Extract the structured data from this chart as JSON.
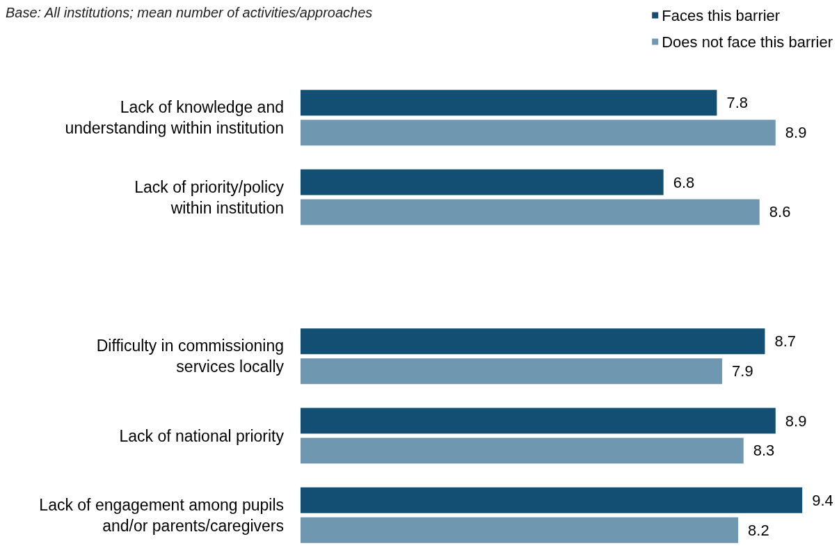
{
  "chart_data": {
    "type": "bar",
    "orientation": "horizontal",
    "annotations": [
      "Base: All institutions; mean number of activities/approaches"
    ],
    "categories": [
      "Lack of knowledge and\nunderstanding within institution",
      "Lack of priority/policy\nwithin institution",
      null,
      "Difficulty in commissioning\nservices locally",
      "Lack of national priority",
      "Lack of engagement among pupils\nand/or parents/caregivers"
    ],
    "series": [
      {
        "name": "Faces this barrier",
        "color": "#134f73",
        "values": [
          7.8,
          6.8,
          null,
          8.7,
          8.9,
          9.4
        ]
      },
      {
        "name": "Does not face this barrier",
        "color": "#7097b0",
        "values": [
          8.9,
          8.6,
          null,
          7.9,
          8.3,
          8.2
        ]
      }
    ],
    "data_labels": true,
    "legend": "top right"
  }
}
